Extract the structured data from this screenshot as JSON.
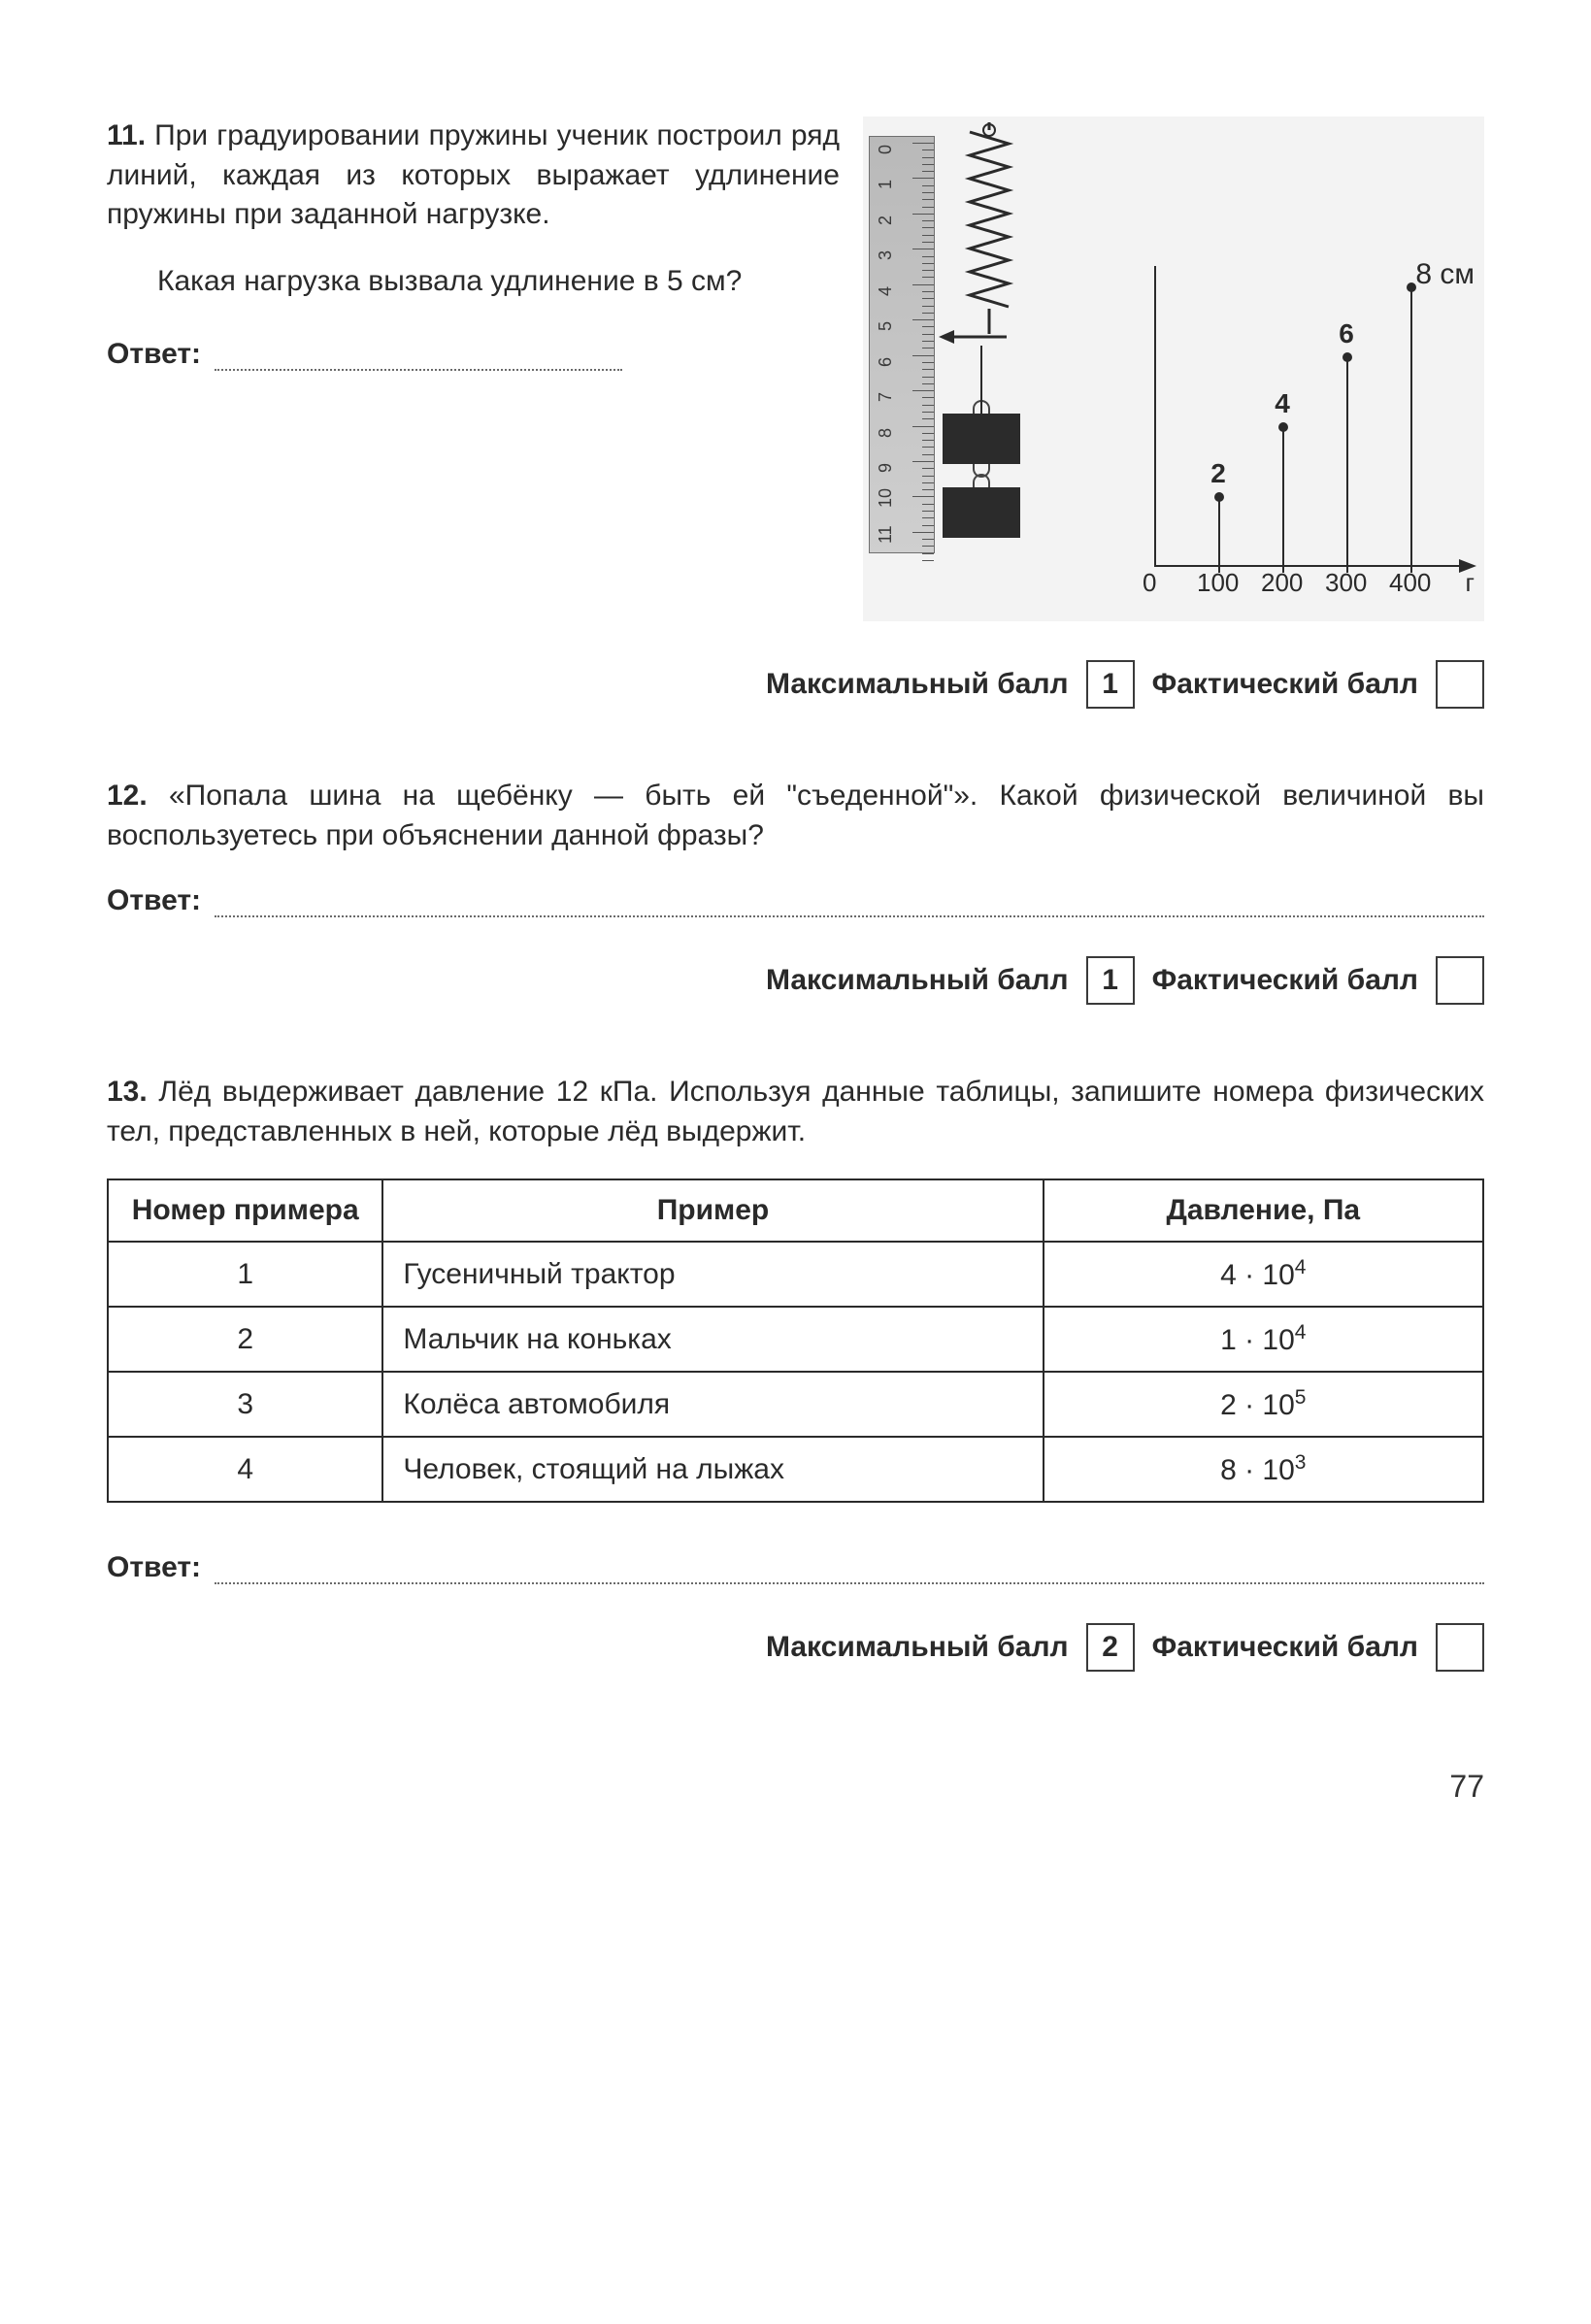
{
  "page_number": "77",
  "labels": {
    "answer": "Ответ:",
    "max_score": "Максимальный балл",
    "actual_score": "Фактический балл"
  },
  "q11": {
    "number": "11.",
    "text1": "При градуировании пружины ученик построил ряд линий, каждая из которых выражает удлинение пружины при заданной нагрузке.",
    "text2": "Какая нагрузка вызвала удлинение в 5 см?",
    "max_score": "1",
    "figure": {
      "ruler": {
        "marks": [
          "0",
          "1",
          "2",
          "3",
          "4",
          "5",
          "6",
          "7",
          "8",
          "9",
          "10",
          "11"
        ]
      },
      "y_unit": "8 см",
      "x_axis": {
        "zero": "0",
        "ticks": [
          "100",
          "200",
          "300",
          "400"
        ],
        "unit": "г"
      },
      "pins": [
        {
          "x_index": 0,
          "height_cm": 2,
          "label": "2"
        },
        {
          "x_index": 1,
          "height_cm": 4,
          "label": "4"
        },
        {
          "x_index": 2,
          "height_cm": 6,
          "label": "6"
        },
        {
          "x_index": 3,
          "height_cm": 8,
          "label": ""
        }
      ],
      "colors": {
        "axis": "#2a2a2a",
        "ruler_bg": "#c5c5c5",
        "weight": "#2b2b2b"
      }
    }
  },
  "q12": {
    "number": "12.",
    "text": "«Попала шина на щебёнку — быть ей \"съеденной\"». Какой физической величиной вы воспользуетесь при объяснении данной фразы?",
    "max_score": "1"
  },
  "q13": {
    "number": "13.",
    "text": "Лёд выдерживает давление 12 кПа. Используя данные таблицы, запишите номера физических тел, представленных в ней, которые лёд выдержит.",
    "max_score": "2",
    "table": {
      "columns": [
        "Номер примера",
        "Пример",
        "Давление, Па"
      ],
      "rows": [
        {
          "n": "1",
          "example": "Гусеничный трактор",
          "press_base": "4",
          "press_exp": "4"
        },
        {
          "n": "2",
          "example": "Мальчик на коньках",
          "press_base": "1",
          "press_exp": "4"
        },
        {
          "n": "3",
          "example": "Колёса автомобиля",
          "press_base": "2",
          "press_exp": "5"
        },
        {
          "n": "4",
          "example": "Человек, стоящий на лыжах",
          "press_base": "8",
          "press_exp": "3"
        }
      ]
    }
  }
}
